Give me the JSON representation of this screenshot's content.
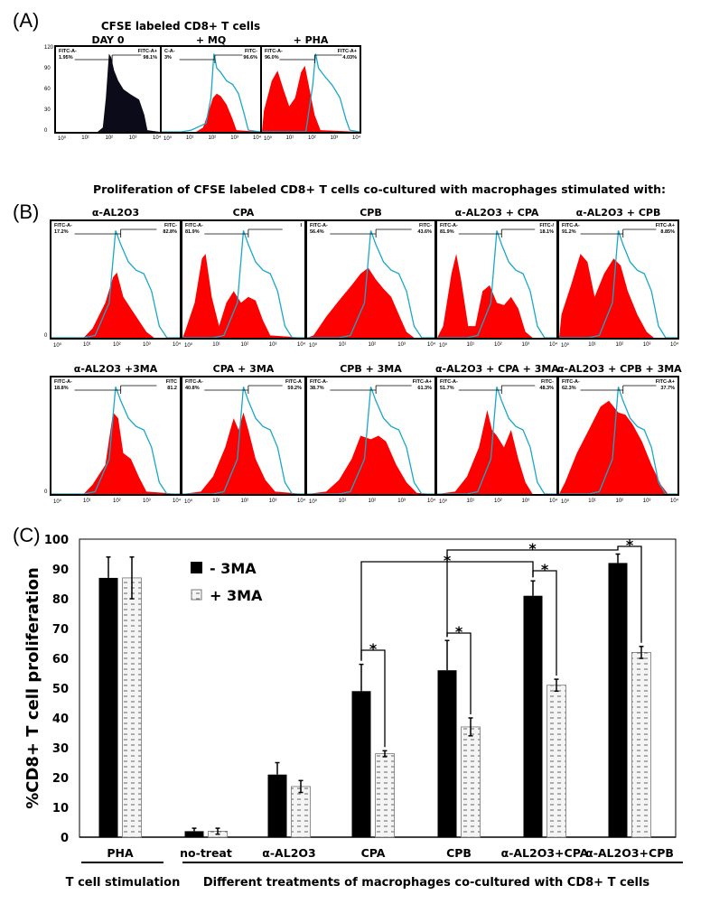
{
  "panels": {
    "A": {
      "label": "(A)",
      "title": "CFSE labeled CD8+ T cells",
      "histograms": [
        {
          "title": "DAY 0",
          "gate_neg_label": "FITC-A-",
          "gate_neg_value": "1.95%",
          "gate_pos_label": "FITC-A+",
          "gate_pos_value": "98.1%",
          "fill": "#0b0b1a",
          "show_reference": false
        },
        {
          "title": "+ MQ",
          "gate_neg_label": "C-A-",
          "gate_neg_value": "3%",
          "gate_pos_label": "FITC-",
          "gate_pos_value": "96.6%",
          "fill": "#ff0000",
          "show_reference": true
        },
        {
          "title": "+ PHA",
          "gate_neg_label": "FITC-A-",
          "gate_neg_value": "96.0%",
          "gate_pos_label": "FITC-A+",
          "gate_pos_value": "4.03%",
          "fill": "#ff0000",
          "show_reference": true
        }
      ],
      "y_ticks": [
        "120",
        "90",
        "60",
        "30",
        "0"
      ],
      "x_ticks": [
        "10⁰",
        "10¹",
        "10²",
        "10³",
        "10⁴"
      ]
    },
    "B": {
      "label": "(B)",
      "title": "Proliferation of CFSE labeled CD8+ T cells co-cultured with macrophages stimulated with:",
      "rows": [
        [
          {
            "title": "α-AL2O3",
            "gate_neg_label": "FITC-A-",
            "gate_neg_value": "17.2%",
            "gate_pos_label": "FITC-",
            "gate_pos_value": "82.8%"
          },
          {
            "title": "CPA",
            "gate_neg_label": "FITC-A-",
            "gate_neg_value": "81.9%",
            "gate_pos_label": "I",
            "gate_pos_value": ""
          },
          {
            "title": "CPB",
            "gate_neg_label": "FITC-A-",
            "gate_neg_value": "56.4%",
            "gate_pos_label": "FITC-",
            "gate_pos_value": "43.6%"
          },
          {
            "title": "α-AL2O3 + CPA",
            "gate_neg_label": "FITC-A-",
            "gate_neg_value": "81.9%",
            "gate_pos_label": "FITC-/",
            "gate_pos_value": "18.1%"
          },
          {
            "title": "α-AL2O3 + CPB",
            "gate_neg_label": "FITC-A-",
            "gate_neg_value": "91.2%",
            "gate_pos_label": "FITC-A+",
            "gate_pos_value": "8.85%"
          }
        ],
        [
          {
            "title": "α-AL2O3 +3MA",
            "gate_neg_label": "FITC-A-",
            "gate_neg_value": "18.8%",
            "gate_pos_label": "FITC",
            "gate_pos_value": "81.2"
          },
          {
            "title": "CPA  + 3MA",
            "gate_neg_label": "FITC-A-",
            "gate_neg_value": "40.8%",
            "gate_pos_label": "FITC-A",
            "gate_pos_value": "59.2%"
          },
          {
            "title": "CPB + 3MA",
            "gate_neg_label": "FITC-A-",
            "gate_neg_value": "38.7%",
            "gate_pos_label": "FITC-A+",
            "gate_pos_value": "61.3%"
          },
          {
            "title": "α-AL2O3 + CPA + 3MA",
            "gate_neg_label": "FITC-A-",
            "gate_neg_value": "51.7%",
            "gate_pos_label": "FITC-",
            "gate_pos_value": "48.3%"
          },
          {
            "title": "α-AL2O3 + CPB + 3MA",
            "gate_neg_label": "FITC-A-",
            "gate_neg_value": "62.3%",
            "gate_pos_label": "FITC-A+",
            "gate_pos_value": "37.7%"
          }
        ]
      ],
      "x_ticks": [
        "10⁰",
        "10¹",
        "10²",
        "10³",
        "10⁴"
      ],
      "y_tick_zero": "0"
    },
    "C": {
      "label": "(C)"
    }
  },
  "colors": {
    "histogram_fill": "#ff0000",
    "reference_line": "#1aa7c8",
    "bar_minus_3ma": "#000000",
    "bar_plus_3ma_bg": "#f2f2f2"
  },
  "chart_data": {
    "type": "bar",
    "title": "",
    "xlabel": "",
    "ylabel": "%CD8+ T cell proliferation",
    "ylim": [
      0,
      100
    ],
    "y_ticks": [
      0,
      10,
      20,
      30,
      40,
      50,
      60,
      70,
      80,
      90,
      100
    ],
    "grid": false,
    "legend_position": "top-left",
    "categories": [
      "PHA",
      "no-treat",
      "α-AL2O3",
      "CPA",
      "CPB",
      "α-AL2O3+CPA",
      "α-AL2O3+CPB"
    ],
    "series": [
      {
        "name": "- 3MA",
        "values": [
          87,
          2,
          21,
          49,
          56,
          81,
          92
        ],
        "errors": [
          7,
          1,
          4,
          9,
          10,
          5,
          3
        ],
        "pattern": "solid"
      },
      {
        "name": "+ 3MA",
        "values": [
          87,
          2,
          17,
          28,
          37,
          51,
          62
        ],
        "errors": [
          7,
          1,
          2,
          1,
          3,
          2,
          2
        ],
        "pattern": "dashed-dots"
      }
    ],
    "group_labels": [
      {
        "label": "T cell stimulation",
        "categories": [
          "PHA"
        ]
      },
      {
        "label": "Different treatments of macrophages co-cultured with CD8+ T cells",
        "categories": [
          "no-treat",
          "α-AL2O3",
          "CPA",
          "CPB",
          "α-AL2O3+CPA",
          "α-AL2O3+CPB"
        ]
      }
    ],
    "significance": [
      {
        "from": "CPA:-3MA",
        "to": "CPA:+3MA",
        "label": "*"
      },
      {
        "from": "CPB:-3MA",
        "to": "CPB:+3MA",
        "label": "*"
      },
      {
        "from": "α-AL2O3+CPA:-3MA",
        "to": "α-AL2O3+CPA:+3MA",
        "label": "*"
      },
      {
        "from": "α-AL2O3+CPB:-3MA",
        "to": "α-AL2O3+CPB:+3MA",
        "label": "*"
      },
      {
        "from": "CPA:-3MA",
        "to": "α-AL2O3+CPA:-3MA",
        "label": "*"
      },
      {
        "from": "CPB:-3MA",
        "to": "α-AL2O3+CPB:-3MA",
        "label": "*"
      }
    ]
  }
}
